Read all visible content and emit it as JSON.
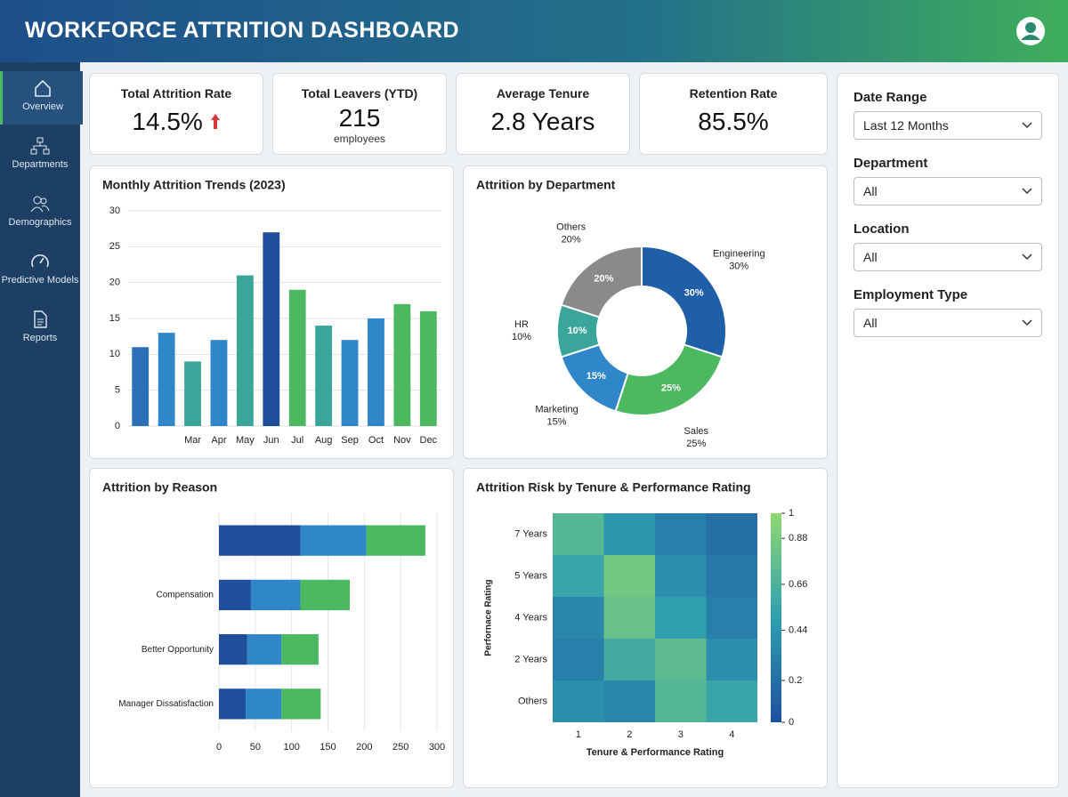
{
  "header": {
    "title": "WORKFORCE ATTRITION DASHBOARD"
  },
  "nav": [
    "Overview",
    "Departments",
    "Demographics",
    "Predictive Models",
    "Reports"
  ],
  "kpis": [
    {
      "label": "Total Attrition Rate",
      "value": "14.5%"
    },
    {
      "label": "Total Leavers (YTD)",
      "value": "215",
      "sub": "employees"
    },
    {
      "label": "Average Tenure",
      "value": "2.8 Years"
    },
    {
      "label": "Retention Rate",
      "value": "85.5%"
    }
  ],
  "filters": [
    {
      "label": "Date Range",
      "value": "Last 12 Months"
    },
    {
      "label": "Department",
      "value": "All"
    },
    {
      "label": "Location",
      "value": "All"
    },
    {
      "label": "Employment Type",
      "value": "All"
    }
  ],
  "chart_data": [
    {
      "type": "bar",
      "title": "Monthly Attrition Trends (2023)",
      "categories": [
        null,
        null,
        "Mar",
        "Apr",
        "May",
        "Jun",
        "Jul",
        "Aug",
        "Sep",
        "Oct",
        "Nov",
        "Dec"
      ],
      "values": [
        11,
        13,
        9,
        12,
        21,
        27,
        19,
        14,
        12,
        15,
        17,
        16
      ],
      "colors": [
        "#2a6fb8",
        "#2f86c8",
        "#3aa69a",
        "#2f86c8",
        "#3aa69a",
        "#1f4f9a",
        "#4cb860",
        "#3aa69a",
        "#2f86c8",
        "#2f86c8",
        "#4cb860",
        "#4cb860"
      ],
      "ylim": [
        0,
        30
      ],
      "yticks": [
        0,
        5,
        10,
        15,
        20,
        25,
        30
      ],
      "grid": true
    },
    {
      "type": "pie",
      "title": "Attrition by Department",
      "categories": [
        "Engineering",
        "Sales",
        "Marketing",
        "HR",
        "Others"
      ],
      "values": [
        30,
        25,
        15,
        10,
        20
      ],
      "value_labels": [
        "30%",
        "25%",
        "15%",
        "10%",
        "20%"
      ],
      "colors": [
        "#1f5fa8",
        "#4cb860",
        "#2f86c8",
        "#3aa69a",
        "#8a8a8a"
      ]
    },
    {
      "type": "barh",
      "title": "Attrition by Reason",
      "stacked": true,
      "categories": [
        null,
        "Compensation",
        "Better Opportunity",
        "Manager Dissatisfaction"
      ],
      "series": [
        {
          "color": "#1f4f9a",
          "values": [
            112,
            44,
            39,
            37
          ]
        },
        {
          "color": "#2f86c8",
          "values": [
            91,
            68,
            47,
            49
          ]
        },
        {
          "color": "#4cb860",
          "values": [
            81,
            68,
            51,
            54
          ]
        }
      ],
      "xlim": [
        0,
        300
      ],
      "xticks": [
        0,
        50,
        100,
        150,
        200,
        250,
        300
      ],
      "grid": true
    },
    {
      "type": "heatmap",
      "title": "Attrition Risk by Tenure & Performance Rating",
      "xlabel": "Tenure & Performance Rating",
      "ylabel": "Perfornace Rating",
      "x": [
        1,
        2,
        3,
        4
      ],
      "y": [
        "7 Years",
        "5 Years",
        "4 Years",
        "2 Years",
        "Others"
      ],
      "values": [
        [
          0.7,
          0.45,
          0.3,
          0.2
        ],
        [
          0.55,
          0.85,
          0.4,
          0.25
        ],
        [
          0.35,
          0.8,
          0.5,
          0.3
        ],
        [
          0.3,
          0.6,
          0.75,
          0.4
        ],
        [
          0.4,
          0.35,
          0.7,
          0.55
        ]
      ],
      "colormap": [
        "#1e4fa0",
        "#2f9fb0",
        "#8fd870"
      ],
      "clim": [
        0,
        1
      ],
      "cticks": [
        0,
        0.2,
        0.44,
        0.66,
        0.88,
        1
      ]
    }
  ]
}
